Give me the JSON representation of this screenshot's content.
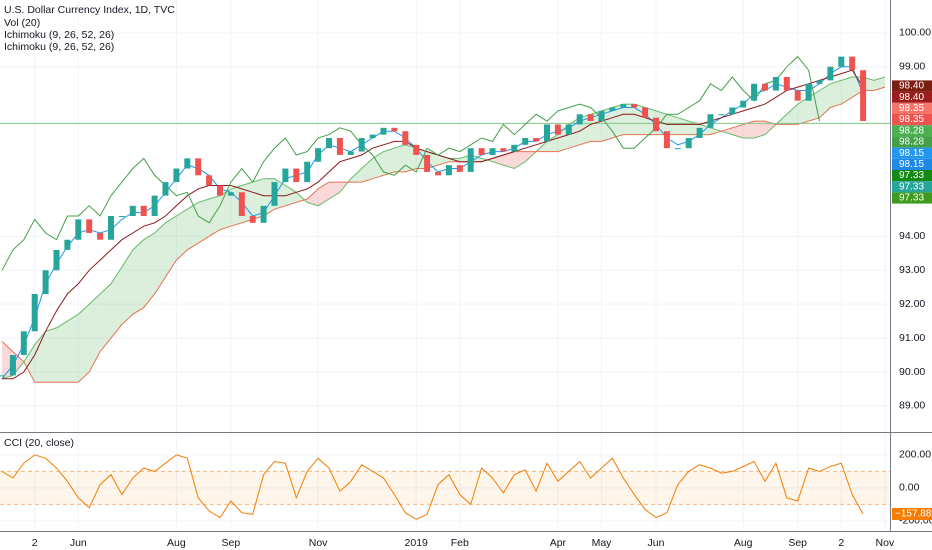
{
  "chart_data": [
    {
      "type": "line",
      "title": "U.S. Dollar Currency Index, 1D, TVC",
      "indicators": [
        "Vol (20)",
        "Ichimoku (9, 26, 52, 26)",
        "Ichimoku (9, 26, 52, 26)"
      ],
      "categories": [
        null,
        null,
        null,
        "2",
        null,
        null,
        null,
        "Jun",
        null,
        null,
        null,
        null,
        null,
        null,
        null,
        null,
        "Aug",
        null,
        null,
        null,
        null,
        "Sep",
        null,
        null,
        null,
        null,
        null,
        null,
        null,
        "Nov",
        null,
        null,
        null,
        null,
        null,
        null,
        null,
        null,
        "2019",
        null,
        null,
        null,
        "Feb",
        null,
        null,
        null,
        null,
        null,
        null,
        null,
        null,
        "Apr",
        null,
        null,
        null,
        "May",
        null,
        null,
        null,
        null,
        "Jun",
        null,
        null,
        null,
        null,
        null,
        null,
        null,
        "Aug",
        null,
        null,
        null,
        null,
        "Sep",
        null,
        null,
        null,
        "2",
        null,
        null,
        null,
        "Nov"
      ],
      "ylim": [
        88.23,
        100.97
      ],
      "yticks": [
        {
          "value": 100,
          "label": "100.00"
        },
        {
          "value": 99,
          "label": "99.00"
        },
        {
          "value": 94,
          "label": "94.00"
        },
        {
          "value": 93,
          "label": "93.00"
        },
        {
          "value": 92,
          "label": "92.00"
        },
        {
          "value": 91,
          "label": "91.00"
        },
        {
          "value": 90,
          "label": "90.00"
        },
        {
          "value": 89,
          "label": "89.00"
        }
      ],
      "grid": true,
      "hline": {
        "value": 97.33,
        "color": "#81c784"
      },
      "candle_colors": {
        "up": "#26a69a",
        "down": "#ef5350"
      },
      "series": [
        {
          "color": "#26a69a",
          "values": [
            89.9,
            90.5,
            91.2,
            92.3,
            93.0,
            93.6,
            93.9,
            94.5,
            94.1,
            93.9,
            94.6,
            94.6,
            94.9,
            94.6,
            95.2,
            95.6,
            96.0,
            96.3,
            95.8,
            95.5,
            95.2,
            95.3,
            94.6,
            94.4,
            94.9,
            95.6,
            96.0,
            95.6,
            96.2,
            96.6,
            96.9,
            96.4,
            96.5,
            96.9,
            97.0,
            97.2,
            97.1,
            96.7,
            96.4,
            95.9,
            95.8,
            96.1,
            95.9,
            96.6,
            96.4,
            96.6,
            96.5,
            96.7,
            96.9,
            96.8,
            97.3,
            97.0,
            97.3,
            97.6,
            97.4,
            97.7,
            97.8,
            97.9,
            97.8,
            97.5,
            97.1,
            96.6,
            96.6,
            96.9,
            97.2,
            97.6,
            97.6,
            97.8,
            98.0,
            98.5,
            98.3,
            98.7,
            98.3,
            98.0,
            98.5,
            98.6,
            99.0,
            99.3,
            98.9,
            97.4,
            null,
            null
          ]
        },
        {
          "color": "#2196f3",
          "values": [
            89.8,
            90.2,
            90.8,
            91.6,
            92.6,
            93.2,
            93.7,
            94.1,
            94.2,
            94.1,
            94.2,
            94.5,
            94.7,
            94.7,
            94.9,
            95.3,
            95.7,
            96.1,
            96.0,
            95.8,
            95.4,
            95.3,
            95.0,
            94.6,
            94.7,
            95.2,
            95.7,
            95.8,
            95.9,
            96.4,
            96.7,
            96.6,
            96.5,
            96.7,
            96.9,
            97.1,
            97.1,
            96.9,
            96.6,
            96.2,
            95.9,
            96.0,
            96.0,
            96.2,
            96.4,
            96.5,
            96.5,
            96.6,
            96.8,
            96.8,
            97.0,
            97.1,
            97.2,
            97.4,
            97.5,
            97.6,
            97.7,
            97.8,
            97.8,
            97.6,
            97.3,
            96.9,
            96.7,
            96.8,
            97.0,
            97.3,
            97.5,
            97.7,
            97.9,
            98.2,
            98.3,
            98.5,
            98.4,
            98.3,
            98.3,
            98.5,
            98.8,
            99.0,
            99.0,
            98.2,
            null,
            null
          ]
        },
        {
          "color": "#8b1a1a",
          "values": [
            89.8,
            89.8,
            90.0,
            90.5,
            91.2,
            91.8,
            92.3,
            92.6,
            93.0,
            93.3,
            93.6,
            93.9,
            94.1,
            94.3,
            94.4,
            94.6,
            94.9,
            95.2,
            95.4,
            95.5,
            95.5,
            95.5,
            95.4,
            95.3,
            95.2,
            95.2,
            95.2,
            95.3,
            95.4,
            95.6,
            95.9,
            96.2,
            96.3,
            96.4,
            96.6,
            96.7,
            96.8,
            96.8,
            96.6,
            96.5,
            96.4,
            96.3,
            96.2,
            96.2,
            96.2,
            96.3,
            96.4,
            96.5,
            96.6,
            96.7,
            96.8,
            96.9,
            97.0,
            97.1,
            97.3,
            97.4,
            97.5,
            97.6,
            97.6,
            97.5,
            97.4,
            97.3,
            97.3,
            97.3,
            97.3,
            97.4,
            97.5,
            97.6,
            97.7,
            97.8,
            97.9,
            98.1,
            98.3,
            98.4,
            98.5,
            98.6,
            98.7,
            98.8,
            98.9,
            98.4,
            null,
            null
          ]
        },
        {
          "color": "#43a047",
          "values": [
            93.0,
            93.6,
            93.9,
            94.5,
            94.1,
            93.9,
            94.6,
            94.6,
            94.9,
            94.6,
            95.2,
            95.6,
            96.0,
            96.3,
            95.8,
            95.5,
            95.2,
            95.3,
            94.6,
            94.4,
            94.9,
            95.6,
            96.0,
            95.6,
            96.2,
            96.6,
            96.9,
            96.4,
            96.5,
            96.9,
            97.0,
            97.2,
            97.1,
            96.7,
            96.4,
            95.9,
            95.8,
            96.1,
            95.9,
            96.6,
            96.4,
            96.6,
            96.5,
            96.7,
            96.9,
            96.8,
            97.3,
            97.0,
            97.3,
            97.6,
            97.4,
            97.7,
            97.8,
            97.9,
            97.8,
            97.5,
            97.1,
            96.6,
            96.6,
            96.9,
            97.2,
            97.6,
            97.6,
            97.8,
            98.0,
            98.5,
            98.3,
            98.7,
            98.3,
            98.0,
            98.5,
            98.6,
            99.0,
            99.3,
            98.9,
            97.4,
            null,
            null,
            null,
            null,
            null,
            null
          ]
        }
      ],
      "cloud": {
        "a_color": "#66bb6a",
        "b_color": "#e57352",
        "up_fill": "rgba(76,175,80,0.2)",
        "down_fill": "rgba(239,83,80,0.22)",
        "a": [
          89.8,
          89.9,
          90.3,
          90.8,
          91.2,
          91.3,
          91.5,
          91.7,
          92.0,
          92.3,
          92.6,
          93.1,
          93.6,
          93.9,
          94.1,
          94.4,
          94.6,
          94.8,
          95.0,
          95.1,
          95.2,
          95.4,
          95.5,
          95.6,
          95.7,
          95.7,
          95.5,
          95.3,
          95.0,
          94.9,
          95.1,
          95.3,
          95.7,
          96.0,
          96.3,
          96.5,
          96.6,
          96.7,
          96.6,
          96.5,
          96.4,
          96.3,
          96.3,
          96.4,
          96.3,
          96.2,
          96.1,
          96.0,
          96.2,
          96.5,
          96.8,
          97.0,
          97.3,
          97.5,
          97.6,
          97.7,
          97.8,
          97.9,
          97.9,
          97.8,
          97.7,
          97.6,
          97.5,
          97.4,
          97.3,
          97.2,
          97.1,
          97.0,
          96.9,
          96.9,
          97.0,
          97.3,
          97.6,
          97.9,
          98.1,
          98.3,
          98.5,
          98.6,
          98.7,
          98.7,
          98.6,
          98.7
        ],
        "b": [
          90.9,
          90.6,
          90.3,
          89.7,
          89.7,
          89.7,
          89.7,
          89.7,
          90.0,
          90.6,
          91.0,
          91.4,
          91.7,
          91.9,
          92.3,
          92.8,
          93.3,
          93.6,
          93.8,
          94.0,
          94.2,
          94.3,
          94.4,
          94.5,
          94.6,
          94.8,
          94.9,
          95.0,
          95.1,
          95.4,
          95.6,
          95.6,
          95.6,
          95.6,
          95.7,
          95.8,
          95.9,
          95.9,
          96.0,
          96.0,
          96.1,
          96.2,
          96.2,
          96.2,
          96.2,
          96.3,
          96.4,
          96.5,
          96.5,
          96.5,
          96.5,
          96.5,
          96.6,
          96.7,
          96.8,
          96.8,
          96.9,
          97.0,
          97.0,
          97.0,
          97.0,
          97.0,
          97.0,
          97.0,
          97.0,
          97.0,
          97.1,
          97.2,
          97.3,
          97.4,
          97.4,
          97.3,
          97.3,
          97.3,
          97.4,
          97.5,
          97.8,
          97.9,
          98.1,
          98.3,
          98.3,
          98.4
        ]
      },
      "price_labels": [
        {
          "label": "98.40",
          "color": "#7b1f12"
        },
        {
          "label": "98.40",
          "color": "#9c1c1c"
        },
        {
          "label": "98.35",
          "color": "#f7756a"
        },
        {
          "label": "98.35",
          "color": "#ef5350"
        },
        {
          "label": "98.28",
          "color": "#4caf50"
        },
        {
          "label": "98.28",
          "color": "#43a047"
        },
        {
          "label": "98.15",
          "color": "#2196f3"
        },
        {
          "label": "98.15",
          "color": "#1e88e5"
        },
        {
          "label": "97.33",
          "color": "#138a13"
        },
        {
          "label": "97.33",
          "color": "#26a69a"
        },
        {
          "label": "97.33",
          "color": "#3e9b1e"
        }
      ]
    },
    {
      "type": "line",
      "title": "CCI (20, close)",
      "ylim": [
        -255,
        333
      ],
      "yticks": [
        {
          "value": 200,
          "label": "200.00"
        },
        {
          "value": 0,
          "label": "0.00"
        },
        {
          "value": -200,
          "label": "-200.00"
        }
      ],
      "band": [
        -100,
        100
      ],
      "band_color": "rgba(245,124,0,0.08)",
      "band_line": "#f5b880",
      "color": "#f57c00",
      "values": [
        100,
        60,
        150,
        200,
        180,
        120,
        40,
        -60,
        -120,
        20,
        80,
        -40,
        60,
        120,
        100,
        150,
        200,
        180,
        -60,
        -140,
        -180,
        -80,
        -150,
        -160,
        80,
        160,
        150,
        -60,
        100,
        180,
        120,
        -20,
        40,
        140,
        100,
        60,
        -40,
        -150,
        -190,
        -160,
        20,
        80,
        -40,
        -100,
        120,
        60,
        -30,
        80,
        110,
        -20,
        150,
        40,
        100,
        160,
        60,
        120,
        180,
        60,
        -40,
        -130,
        -180,
        -150,
        20,
        100,
        140,
        120,
        90,
        100,
        130,
        160,
        40,
        150,
        -60,
        -80,
        120,
        100,
        130,
        150,
        -40,
        -157.88,
        null,
        null
      ],
      "last_label": "−157.88"
    }
  ]
}
